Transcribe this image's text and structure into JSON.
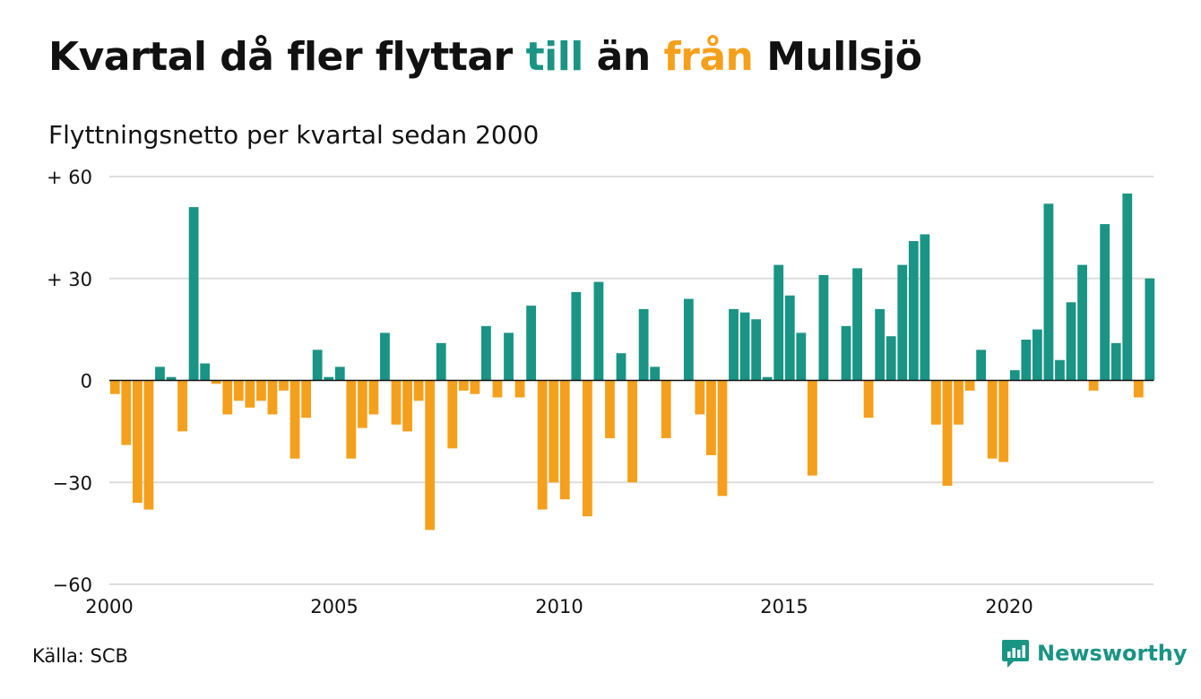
{
  "title": {
    "part1": "Kvartal då fler flyttar ",
    "part2": "till",
    "part3": " än ",
    "part4": "från",
    "part5": " Mullsjö"
  },
  "subtitle": "Flyttningsnetto per kvartal sedan 2000",
  "source": "Källa: SCB",
  "brand": "Newsworthy",
  "colors": {
    "positive": "#1a9484",
    "negative": "#f5a01c",
    "text": "#111111",
    "grid": "#dddddd"
  },
  "chart_data": {
    "type": "bar",
    "start_year": 2000,
    "ylim": [
      -60,
      60
    ],
    "yticks": [
      {
        "value": 60,
        "label": "+ 60"
      },
      {
        "value": 30,
        "label": "+ 30"
      },
      {
        "value": 0,
        "label": "0"
      },
      {
        "value": -30,
        "label": "−30"
      },
      {
        "value": -60,
        "label": "−60"
      }
    ],
    "xticks": [
      "2000",
      "2005",
      "2010",
      "2015",
      "2020"
    ],
    "grid": true,
    "values": [
      -4,
      -19,
      -36,
      -38,
      4,
      1,
      -15,
      51,
      5,
      -1,
      -10,
      -6,
      -8,
      -6,
      -10,
      -3,
      -23,
      -11,
      9,
      1,
      4,
      -23,
      -14,
      -10,
      14,
      -13,
      -15,
      -6,
      -44,
      11,
      -20,
      -3,
      -4,
      16,
      -5,
      14,
      -5,
      22,
      -38,
      -30,
      -35,
      26,
      -40,
      29,
      -17,
      8,
      -30,
      21,
      4,
      -17,
      0,
      24,
      -10,
      -22,
      -34,
      21,
      20,
      18,
      1,
      34,
      25,
      14,
      -28,
      31,
      0,
      16,
      33,
      -11,
      21,
      13,
      34,
      41,
      43,
      -13,
      -31,
      -13,
      -3,
      9,
      -23,
      -24,
      3,
      12,
      15,
      52,
      6,
      23,
      34,
      -3,
      46,
      11,
      55,
      -5,
      30
    ]
  }
}
